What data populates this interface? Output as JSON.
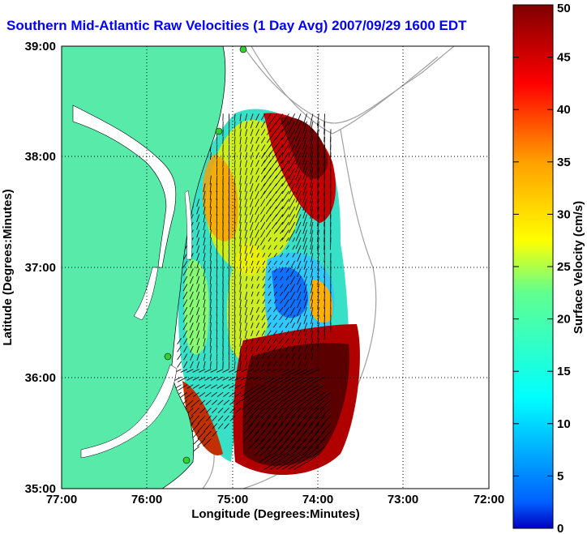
{
  "chart_data": {
    "type": "heatmap",
    "title": "Southern Mid-Atlantic Raw Velocities (1 Day Avg) 2007/09/29 1600 EDT",
    "xlabel": "Longitude (Degrees:Minutes)",
    "ylabel": "Latitude (Degrees:Minutes)",
    "colorbar_label": "Surface Velocity (cm/s)",
    "x_ticks": [
      "77:00",
      "76:00",
      "75:00",
      "74:00",
      "73:00",
      "72:00"
    ],
    "y_ticks": [
      "39:00",
      "38:00",
      "37:00",
      "36:00",
      "35:00"
    ],
    "colorbar_ticks": [
      "0",
      "5",
      "10",
      "15",
      "20",
      "25",
      "30",
      "35",
      "40",
      "45",
      "50"
    ],
    "xlim": [
      -77,
      -72
    ],
    "ylim": [
      35,
      39
    ],
    "clim": [
      0,
      50
    ],
    "grid": true,
    "colormap": "jet",
    "velocity_regions": [
      {
        "lon": -74.8,
        "lat": 38.2,
        "speed": 20
      },
      {
        "lon": -74.3,
        "lat": 38.1,
        "speed": 48
      },
      {
        "lon": -74.1,
        "lat": 37.7,
        "speed": 45
      },
      {
        "lon": -74.9,
        "lat": 37.5,
        "speed": 28
      },
      {
        "lon": -75.2,
        "lat": 37.2,
        "speed": 24
      },
      {
        "lon": -74.5,
        "lat": 36.9,
        "speed": 8
      },
      {
        "lon": -74.2,
        "lat": 36.8,
        "speed": 30
      },
      {
        "lon": -75.1,
        "lat": 36.6,
        "speed": 25
      },
      {
        "lon": -74.5,
        "lat": 36.4,
        "speed": 14
      },
      {
        "lon": -75.3,
        "lat": 36.0,
        "speed": 20
      },
      {
        "lon": -74.3,
        "lat": 35.7,
        "speed": 55
      },
      {
        "lon": -75.6,
        "lat": 35.8,
        "speed": 38
      }
    ]
  },
  "colors": {
    "title": "#0000ff",
    "land": "#57eaa8",
    "coastline": "#000000",
    "bathymetry": "#a0a0a0",
    "vectors": "#000000"
  }
}
